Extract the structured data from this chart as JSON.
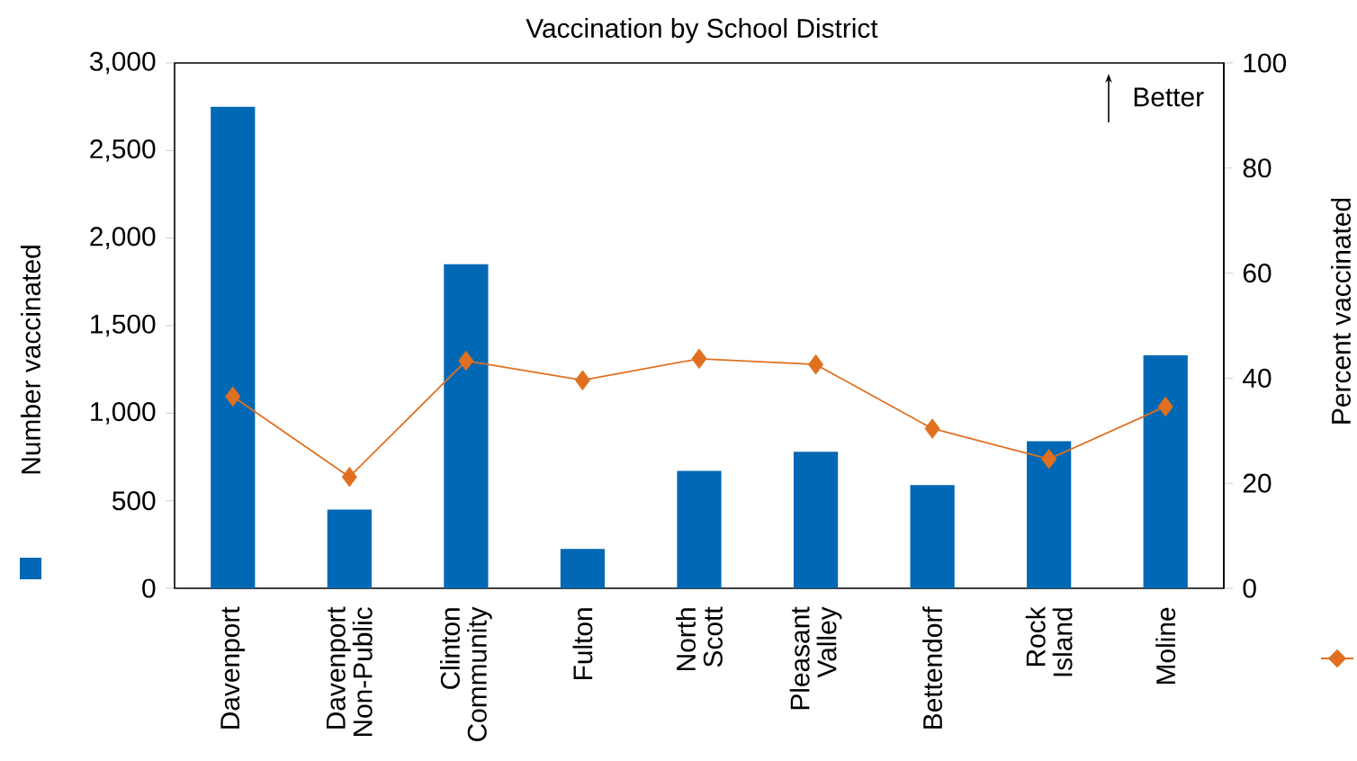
{
  "chart_data": {
    "type": "bar",
    "title": "Vaccination by School District",
    "ylabel": "Number vaccinated",
    "y2label": "Percent vaccinated",
    "categories": [
      "Davenport",
      "Davenport Non-Public",
      "Clinton Community",
      "Fulton",
      "North Scott",
      "Pleasant Valley",
      "Bettendorf",
      "Rock Island",
      "Moline"
    ],
    "series": [
      {
        "color": "#0068b4",
        "values": [
          2750,
          450,
          1850,
          225,
          670,
          780,
          590,
          840,
          1330
        ]
      },
      {
        "type": "line",
        "axis": "y2",
        "color": "#e07020",
        "values": [
          36.5,
          21.2,
          43.3,
          39.6,
          43.7,
          42.6,
          30.4,
          24.6,
          34.6
        ]
      }
    ],
    "ylim": [
      0,
      3000
    ],
    "yticks": [
      0,
      500,
      {
        "value": 1000,
        "label": "1,000"
      },
      {
        "value": 1500,
        "label": "1,500"
      },
      {
        "value": 2000,
        "label": "2,000"
      },
      {
        "value": 2500,
        "label": "2,500"
      },
      {
        "value": 3000,
        "label": "3,000"
      }
    ],
    "y2lim": [
      0,
      100
    ],
    "y2ticks": [
      0,
      20,
      40,
      60,
      80,
      100
    ],
    "marker": "diamond",
    "line_style": "solid",
    "annotations": [
      "Better"
    ]
  }
}
